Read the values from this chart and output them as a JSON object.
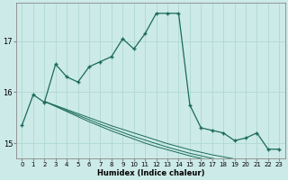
{
  "xlabel": "Humidex (Indice chaleur)",
  "ylabel": "",
  "background_color": "#cceae7",
  "grid_color": "#b0d8d4",
  "line_color": "#1a6b5a",
  "xlim": [
    -0.5,
    23.5
  ],
  "ylim": [
    14.7,
    17.75
  ],
  "yticks": [
    15,
    16,
    17
  ],
  "xticks": [
    0,
    1,
    2,
    3,
    4,
    5,
    6,
    7,
    8,
    9,
    10,
    11,
    12,
    13,
    14,
    15,
    16,
    17,
    18,
    19,
    20,
    21,
    22,
    23
  ],
  "main_x": [
    0,
    1,
    2,
    3,
    4,
    5,
    6,
    7,
    8,
    9,
    10,
    11,
    12,
    13,
    14,
    15,
    16,
    17,
    18,
    19,
    20,
    21,
    22,
    23
  ],
  "main_y": [
    15.35,
    15.95,
    15.8,
    16.55,
    16.3,
    16.2,
    16.5,
    16.6,
    16.7,
    17.05,
    16.85,
    17.15,
    17.55,
    17.55,
    17.55,
    15.75,
    15.3,
    15.25,
    15.2,
    15.05,
    15.1,
    15.2,
    14.88,
    14.88
  ],
  "line2_x": [
    2,
    3,
    4,
    5,
    6,
    7,
    8,
    9,
    10,
    11,
    12,
    13,
    14,
    15,
    16,
    17,
    18,
    19,
    20,
    21,
    22,
    23
  ],
  "line2_y": [
    15.82,
    15.72,
    15.62,
    15.52,
    15.42,
    15.33,
    15.24,
    15.16,
    15.08,
    15.0,
    14.93,
    14.87,
    14.81,
    14.75,
    14.7,
    14.65,
    14.62,
    14.58,
    14.54,
    14.51,
    14.47,
    14.44
  ],
  "line3_x": [
    2,
    3,
    4,
    5,
    6,
    7,
    8,
    9,
    10,
    11,
    12,
    13,
    14,
    15,
    16,
    17,
    18,
    19,
    20,
    21,
    22,
    23
  ],
  "line3_y": [
    15.82,
    15.73,
    15.64,
    15.55,
    15.46,
    15.37,
    15.29,
    15.21,
    15.13,
    15.06,
    14.99,
    14.92,
    14.86,
    14.8,
    14.75,
    14.7,
    14.66,
    14.62,
    14.58,
    14.55,
    14.51,
    14.48
  ],
  "line4_x": [
    2,
    3,
    4,
    5,
    6,
    7,
    8,
    9,
    10,
    11,
    12,
    13,
    14,
    15,
    16,
    17,
    18,
    19,
    20,
    21,
    22,
    23
  ],
  "line4_y": [
    15.82,
    15.74,
    15.66,
    15.58,
    15.5,
    15.42,
    15.34,
    15.27,
    15.2,
    15.13,
    15.06,
    14.99,
    14.93,
    14.87,
    14.82,
    14.77,
    14.73,
    14.69,
    14.65,
    14.62,
    14.58,
    14.55
  ]
}
